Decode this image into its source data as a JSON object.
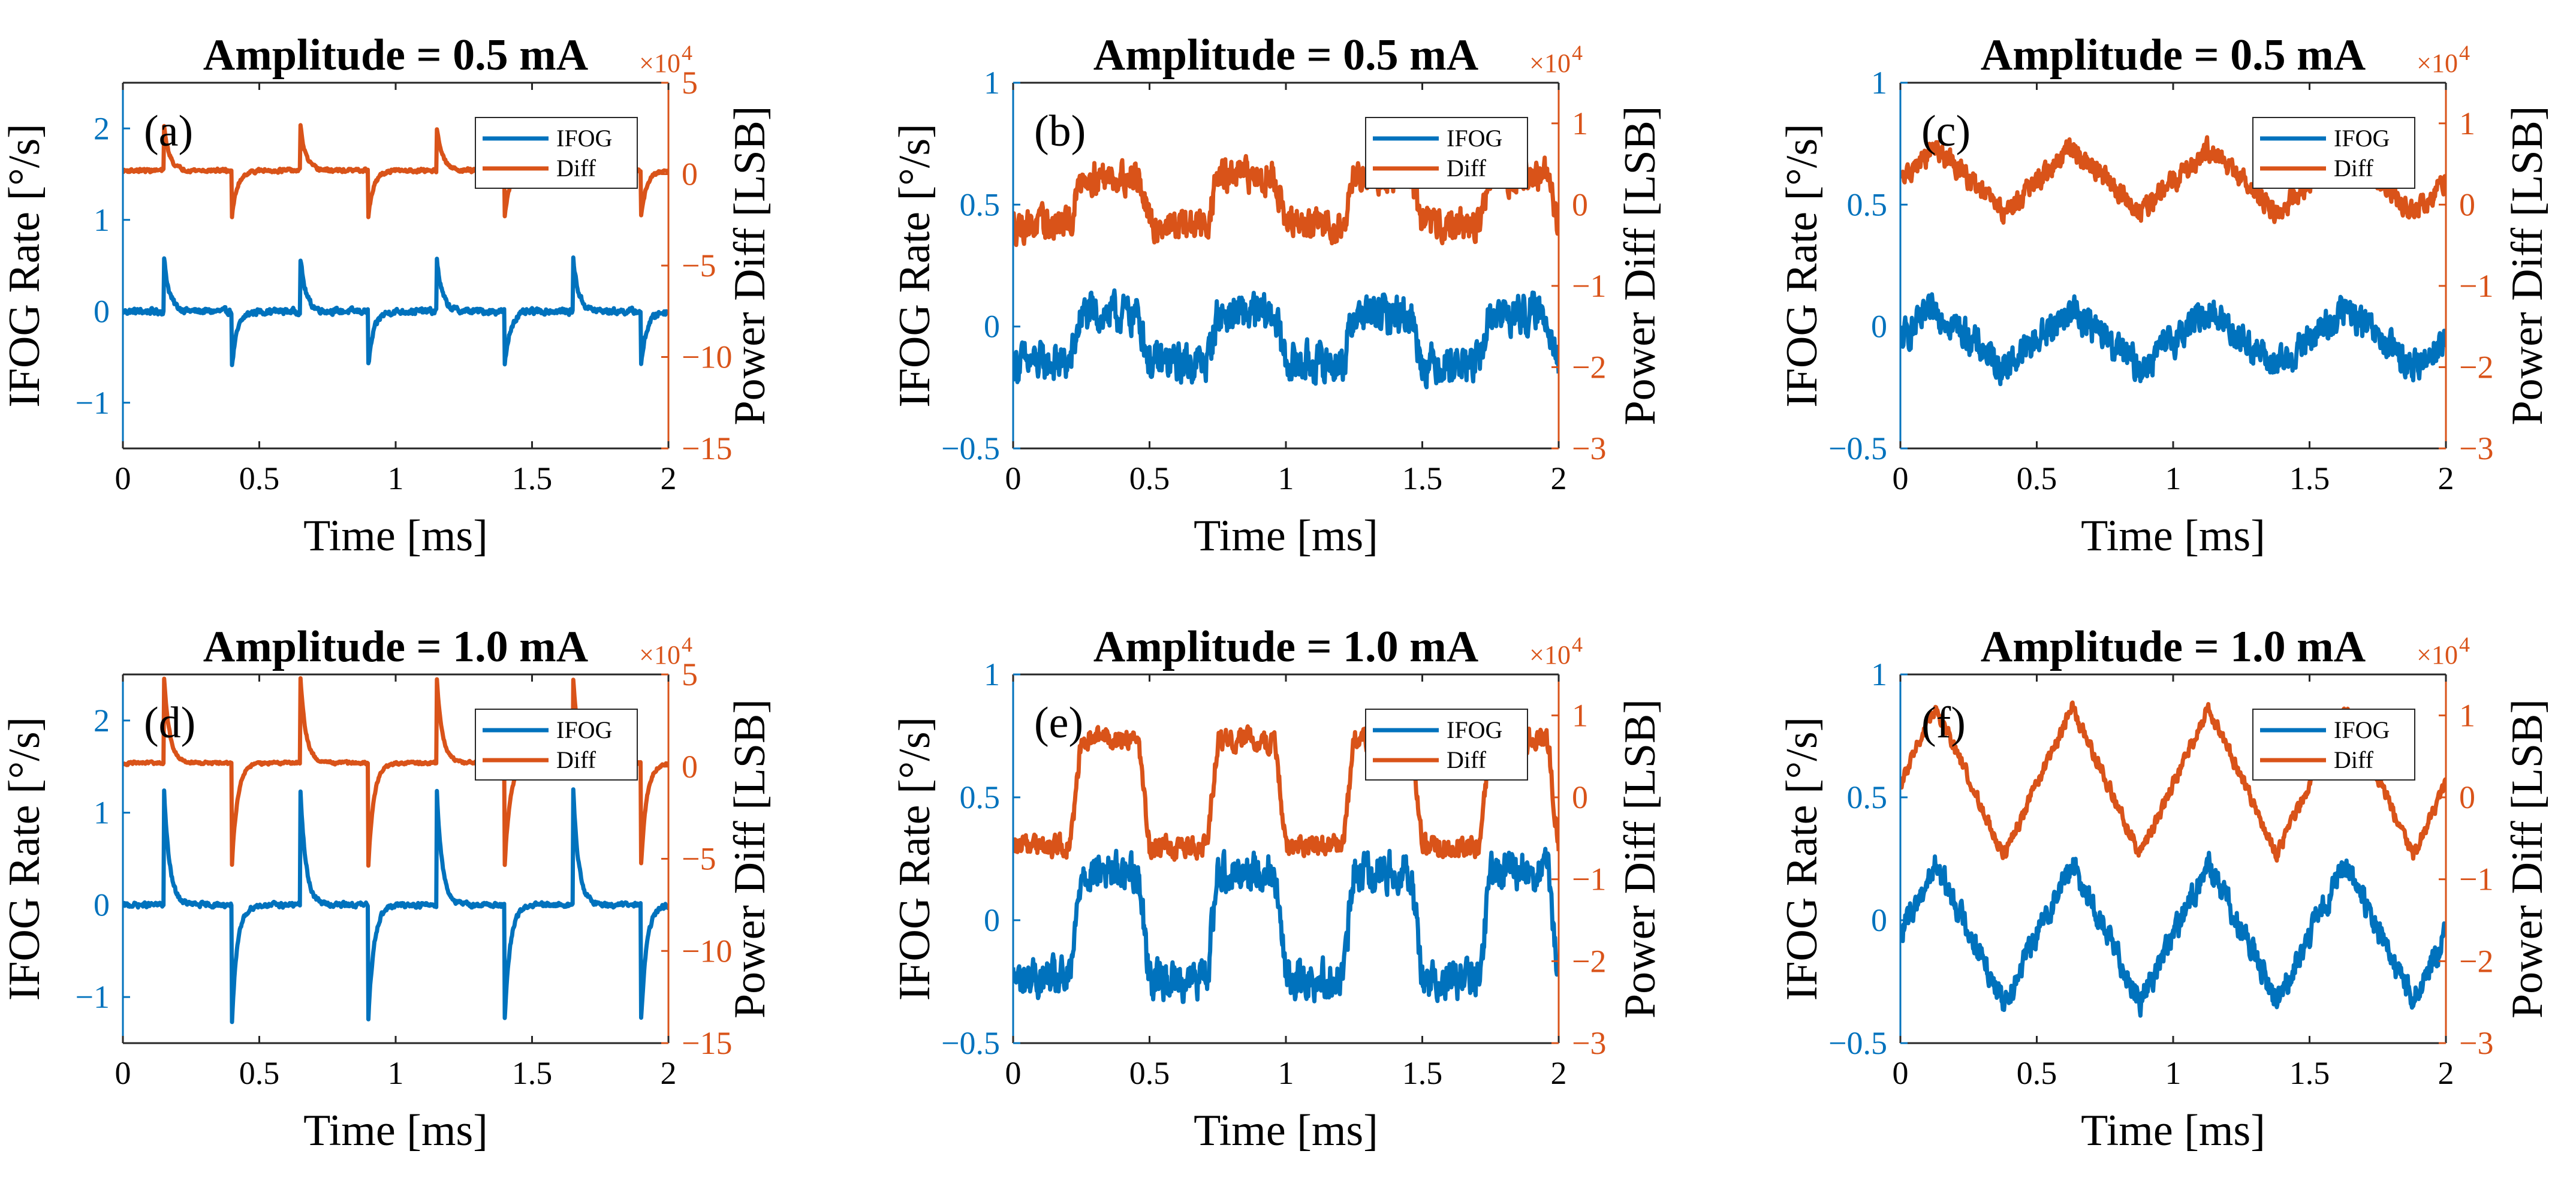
{
  "colors": {
    "ifog": "#0072BD",
    "diff": "#D95319",
    "axis": "#262626"
  },
  "chart_data": [
    {
      "type": "line",
      "panel": "(a)",
      "title": "Amplitude = 0.5 mA",
      "xlabel": "Time [ms]",
      "ylabel_left": "IFOG Rate [°/s]",
      "ylabel_right": "Power Diff [LSB]",
      "exponent_label": "×10",
      "exponent_power": "4",
      "xlim": [
        0,
        2
      ],
      "ylim_left": [
        -1.5,
        2.5
      ],
      "ylim_right": [
        -15,
        5
      ],
      "xticks": [
        0,
        0.5,
        1,
        1.5,
        2
      ],
      "xtick_labels": [
        "0",
        "0.5",
        "1",
        "1.5",
        "2"
      ],
      "yticks_left": [
        -1,
        0,
        1,
        2
      ],
      "ytick_labels_left": [
        "−1",
        "0",
        "1",
        "2"
      ],
      "yticks_right": [
        -15,
        -10,
        -5,
        0,
        5
      ],
      "ytick_labels_right": [
        "−15",
        "−10",
        "−5",
        "0",
        "5"
      ],
      "legend": [
        "IFOG",
        "Diff"
      ],
      "series": [
        {
          "name": "IFOG",
          "axis": "left",
          "shape": "spike",
          "period": 0.5,
          "phase": 0.15,
          "base": 0.0,
          "pos": 0.6,
          "neg": -0.6,
          "noise": 0.05
        },
        {
          "name": "Diff",
          "axis": "right",
          "shape": "spike",
          "period": 0.5,
          "phase": 0.15,
          "base": 0.2,
          "pos": 2.5,
          "neg": -2.5,
          "noise": 0.15
        }
      ]
    },
    {
      "type": "line",
      "panel": "(b)",
      "title": "Amplitude = 0.5 mA",
      "xlabel": "Time [ms]",
      "ylabel_left": "IFOG Rate [°/s]",
      "ylabel_right": "Power Diff [LSB]",
      "exponent_label": "×10",
      "exponent_power": "4",
      "xlim": [
        0,
        2
      ],
      "ylim_left": [
        -0.5,
        1
      ],
      "ylim_right": [
        -3,
        1.5
      ],
      "xticks": [
        0,
        0.5,
        1,
        1.5,
        2
      ],
      "xtick_labels": [
        "0",
        "0.5",
        "1",
        "1.5",
        "2"
      ],
      "yticks_left": [
        -0.5,
        0,
        0.5,
        1
      ],
      "ytick_labels_left": [
        "−0.5",
        "0",
        "0.5",
        "1"
      ],
      "yticks_right": [
        -3,
        -2,
        -1,
        0,
        1
      ],
      "ytick_labels_right": [
        "−3",
        "−2",
        "−1",
        "0",
        "1"
      ],
      "legend": [
        "IFOG",
        "Diff"
      ],
      "series": [
        {
          "name": "IFOG",
          "axis": "left",
          "shape": "square",
          "period": 0.5,
          "phase": 0.25,
          "base": -0.05,
          "amp": 0.1,
          "noise": 0.12
        },
        {
          "name": "Diff",
          "axis": "right",
          "shape": "square",
          "period": 0.5,
          "phase": 0.25,
          "base": 0.05,
          "amp": 0.3,
          "noise": 0.3
        }
      ]
    },
    {
      "type": "line",
      "panel": "(c)",
      "title": "Amplitude = 0.5 mA",
      "xlabel": "Time [ms]",
      "ylabel_left": "IFOG Rate [°/s]",
      "ylabel_right": "Power Diff [LSB]",
      "exponent_label": "×10",
      "exponent_power": "4",
      "xlim": [
        0,
        2
      ],
      "ylim_left": [
        -0.5,
        1
      ],
      "ylim_right": [
        -3,
        1.5
      ],
      "xticks": [
        0,
        0.5,
        1,
        1.5,
        2
      ],
      "xtick_labels": [
        "0",
        "0.5",
        "1",
        "1.5",
        "2"
      ],
      "yticks_left": [
        -0.5,
        0,
        0.5,
        1
      ],
      "ytick_labels_left": [
        "−0.5",
        "0",
        "0.5",
        "1"
      ],
      "yticks_right": [
        -3,
        -2,
        -1,
        0,
        1
      ],
      "ytick_labels_right": [
        "−3",
        "−2",
        "−1",
        "0",
        "1"
      ],
      "legend": [
        "IFOG",
        "Diff"
      ],
      "series": [
        {
          "name": "IFOG",
          "axis": "left",
          "shape": "triangle",
          "period": 0.5,
          "phase": 0.13,
          "base": -0.05,
          "amp": 0.12,
          "noise": 0.1
        },
        {
          "name": "Diff",
          "axis": "right",
          "shape": "triangle",
          "period": 0.5,
          "phase": 0.13,
          "base": 0.3,
          "amp": 0.4,
          "noise": 0.2
        }
      ]
    },
    {
      "type": "line",
      "panel": "(d)",
      "title": "Amplitude = 1.0 mA",
      "xlabel": "Time [ms]",
      "ylabel_left": "IFOG Rate [°/s]",
      "ylabel_right": "Power Diff [LSB]",
      "exponent_label": "×10",
      "exponent_power": "4",
      "xlim": [
        0,
        2
      ],
      "ylim_left": [
        -1.5,
        2.5
      ],
      "ylim_right": [
        -15,
        5
      ],
      "xticks": [
        0,
        0.5,
        1,
        1.5,
        2
      ],
      "xtick_labels": [
        "0",
        "0.5",
        "1",
        "1.5",
        "2"
      ],
      "yticks_left": [
        -1,
        0,
        1,
        2
      ],
      "ytick_labels_left": [
        "−1",
        "0",
        "1",
        "2"
      ],
      "yticks_right": [
        -15,
        -10,
        -5,
        0,
        5
      ],
      "ytick_labels_right": [
        "−15",
        "−10",
        "−5",
        "0",
        "5"
      ],
      "legend": [
        "IFOG",
        "Diff"
      ],
      "series": [
        {
          "name": "IFOG",
          "axis": "left",
          "shape": "spike",
          "period": 0.5,
          "phase": 0.15,
          "base": 0.0,
          "pos": 1.3,
          "neg": -1.25,
          "noise": 0.04
        },
        {
          "name": "Diff",
          "axis": "right",
          "shape": "spike",
          "period": 0.5,
          "phase": 0.15,
          "base": 0.2,
          "pos": 4.8,
          "neg": -5.5,
          "noise": 0.12
        }
      ]
    },
    {
      "type": "line",
      "panel": "(e)",
      "title": "Amplitude = 1.0 mA",
      "xlabel": "Time [ms]",
      "ylabel_left": "IFOG Rate [°/s]",
      "ylabel_right": "Power Diff [LSB]",
      "exponent_label": "×10",
      "exponent_power": "4",
      "xlim": [
        0,
        2
      ],
      "ylim_left": [
        -0.5,
        1
      ],
      "ylim_right": [
        -3,
        1.5
      ],
      "xticks": [
        0,
        0.5,
        1,
        1.5,
        2
      ],
      "xtick_labels": [
        "0",
        "0.5",
        "1",
        "1.5",
        "2"
      ],
      "yticks_left": [
        -0.5,
        0,
        0.5,
        1
      ],
      "ytick_labels_left": [
        "−0.5",
        "0",
        "0.5",
        "1"
      ],
      "yticks_right": [
        -3,
        -2,
        -1,
        0,
        1
      ],
      "ytick_labels_right": [
        "−3",
        "−2",
        "−1",
        "0",
        "1"
      ],
      "legend": [
        "IFOG",
        "Diff"
      ],
      "series": [
        {
          "name": "IFOG",
          "axis": "left",
          "shape": "square",
          "period": 0.5,
          "phase": 0.25,
          "base": -0.02,
          "amp": 0.22,
          "noise": 0.12
        },
        {
          "name": "Diff",
          "axis": "right",
          "shape": "square",
          "period": 0.5,
          "phase": 0.25,
          "base": 0.05,
          "amp": 0.65,
          "noise": 0.2
        }
      ]
    },
    {
      "type": "line",
      "panel": "(f)",
      "title": "Amplitude = 1.0 mA",
      "xlabel": "Time [ms]",
      "ylabel_left": "IFOG Rate [°/s]",
      "ylabel_right": "Power Diff [LSB]",
      "exponent_label": "×10",
      "exponent_power": "4",
      "xlim": [
        0,
        2
      ],
      "ylim_left": [
        -0.5,
        1
      ],
      "ylim_right": [
        -3,
        1.5
      ],
      "xticks": [
        0,
        0.5,
        1,
        1.5,
        2
      ],
      "xtick_labels": [
        "0",
        "0.5",
        "1",
        "1.5",
        "2"
      ],
      "yticks_left": [
        -0.5,
        0,
        0.5,
        1
      ],
      "ytick_labels_left": [
        "−0.5",
        "0",
        "0.5",
        "1"
      ],
      "yticks_right": [
        -3,
        -2,
        -1,
        0,
        1
      ],
      "ytick_labels_right": [
        "−3",
        "−2",
        "−1",
        "0",
        "1"
      ],
      "legend": [
        "IFOG",
        "Diff"
      ],
      "series": [
        {
          "name": "IFOG",
          "axis": "left",
          "shape": "triangle",
          "period": 0.5,
          "phase": 0.13,
          "base": -0.05,
          "amp": 0.28,
          "noise": 0.08
        },
        {
          "name": "Diff",
          "axis": "right",
          "shape": "triangle",
          "period": 0.5,
          "phase": 0.13,
          "base": 0.2,
          "amp": 0.9,
          "noise": 0.12
        }
      ]
    }
  ]
}
